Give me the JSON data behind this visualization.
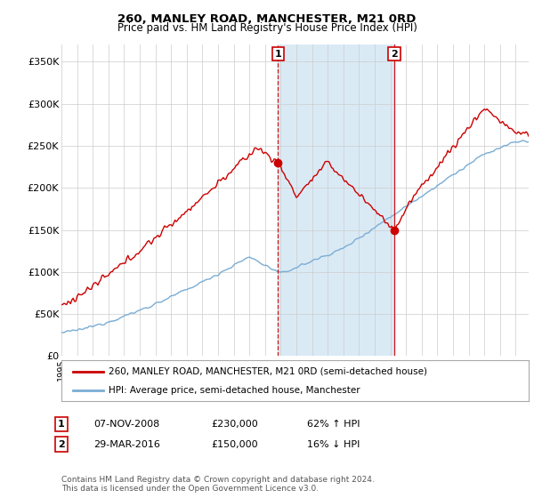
{
  "title": "260, MANLEY ROAD, MANCHESTER, M21 0RD",
  "subtitle": "Price paid vs. HM Land Registry's House Price Index (HPI)",
  "ylabel_ticks": [
    "£0",
    "£50K",
    "£100K",
    "£150K",
    "£200K",
    "£250K",
    "£300K",
    "£350K"
  ],
  "yvalues": [
    0,
    50000,
    100000,
    150000,
    200000,
    250000,
    300000,
    350000
  ],
  "ylim": [
    0,
    370000
  ],
  "sale1_x": 2008.833,
  "sale1_price": 230000,
  "sale1_text": "07-NOV-2008",
  "sale1_pct": "62% ↑ HPI",
  "sale2_x": 2016.25,
  "sale2_price": 150000,
  "sale2_text": "29-MAR-2016",
  "sale2_pct": "16% ↓ HPI",
  "property_color": "#cc0000",
  "hpi_color": "#7aadd4",
  "shade_color": "#daeaf5",
  "legend_property": "260, MANLEY ROAD, MANCHESTER, M21 0RD (semi-detached house)",
  "legend_hpi": "HPI: Average price, semi-detached house, Manchester",
  "footnote": "Contains HM Land Registry data © Crown copyright and database right 2024.\nThis data is licensed under the Open Government Licence v3.0.",
  "background_color": "#ffffff",
  "plot_bg_color": "#ffffff",
  "grid_color": "#cccccc"
}
